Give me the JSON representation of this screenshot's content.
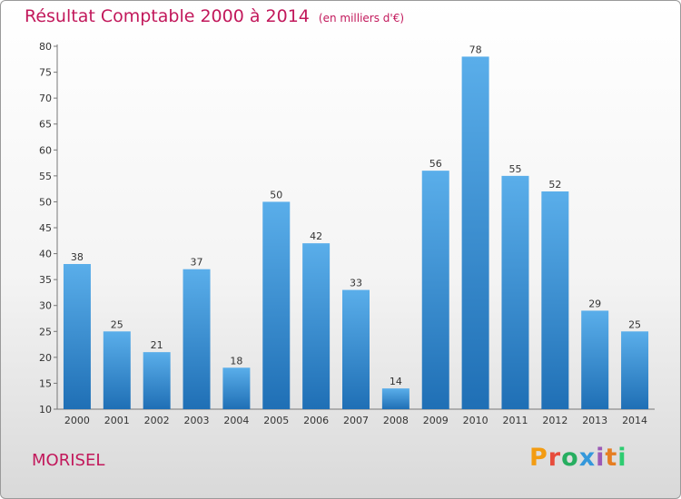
{
  "header": {
    "title": "Résultat Comptable 2000 à 2014",
    "unit": "(en milliers d'€)"
  },
  "footer": {
    "commune": "MORISEL",
    "logo": "Proxiti",
    "logo_colors": [
      "#f39c12",
      "#e74c3c",
      "#27ae60",
      "#3498db",
      "#9b59b6",
      "#e67e22",
      "#2ecc71"
    ]
  },
  "colors": {
    "title": "#c2185b",
    "bar_top": "#5aaeea",
    "bar_bottom": "#1f6fb5"
  },
  "chart_data": {
    "type": "bar",
    "title": "Résultat Comptable 2000 à 2014",
    "xlabel": "",
    "ylabel": "",
    "categories": [
      "2000",
      "2001",
      "2002",
      "2003",
      "2004",
      "2005",
      "2006",
      "2007",
      "2008",
      "2009",
      "2010",
      "2011",
      "2012",
      "2013",
      "2014"
    ],
    "values": [
      38,
      25,
      21,
      37,
      18,
      50,
      42,
      33,
      14,
      56,
      78,
      55,
      52,
      29,
      25
    ],
    "ylim": [
      10,
      80
    ],
    "yticks": [
      10,
      15,
      20,
      25,
      30,
      35,
      40,
      45,
      50,
      55,
      60,
      65,
      70,
      75,
      80
    ],
    "grid": false,
    "data_labels": true
  }
}
